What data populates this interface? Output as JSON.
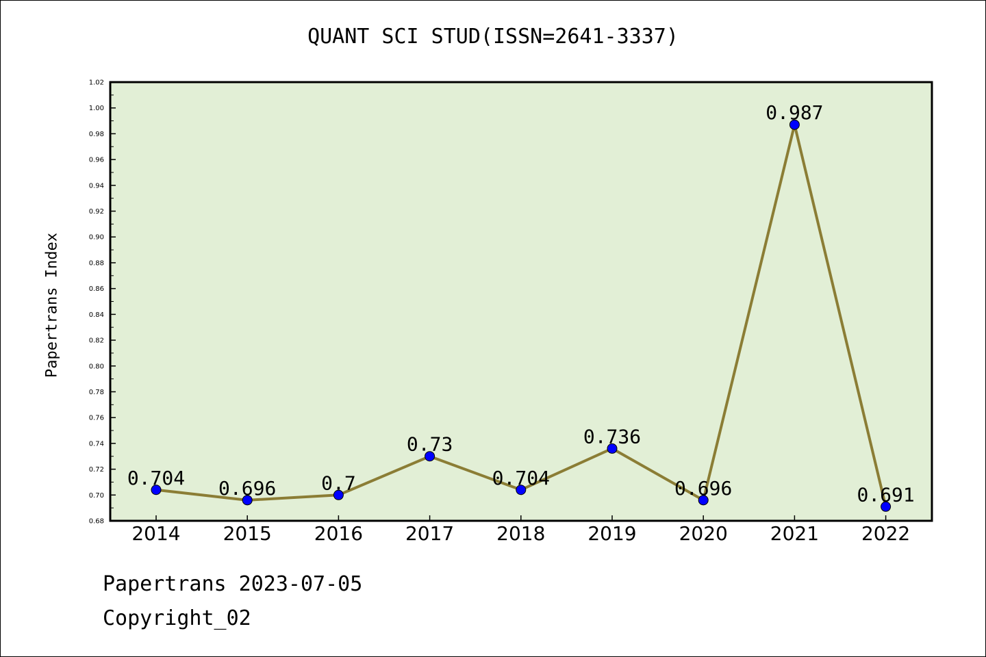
{
  "chart_data": {
    "type": "line",
    "title": "QUANT SCI STUD(ISSN=2641-3337)",
    "xlabel": "",
    "ylabel": "Papertrans Index",
    "categories": [
      "2014",
      "2015",
      "2016",
      "2017",
      "2018",
      "2019",
      "2020",
      "2021",
      "2022"
    ],
    "series": [
      {
        "values": [
          0.704,
          0.696,
          0.7,
          0.73,
          0.704,
          0.736,
          0.696,
          0.987,
          0.691
        ],
        "data_labels": [
          "0.704",
          "0.696",
          "0.7",
          "0.73",
          "0.704",
          "0.736",
          "0.696",
          "0.987",
          "0.691"
        ]
      }
    ],
    "yticks": [
      "0.68",
      "0.70",
      "0.72",
      "0.74",
      "0.76",
      "0.78",
      "0.80",
      "0.82",
      "0.84",
      "0.86",
      "0.88",
      "0.90",
      "0.92",
      "0.94",
      "0.96",
      "0.98",
      "1.00",
      "1.02"
    ],
    "ylim": [
      0.68,
      1.02
    ],
    "grid": false,
    "legend": "none",
    "colors": {
      "plot_background": "#e2efd6",
      "line": "#8b7d35",
      "marker": "#0000ff"
    }
  },
  "footer": {
    "line1": "Papertrans 2023-07-05",
    "line2": "Copyright_02"
  }
}
